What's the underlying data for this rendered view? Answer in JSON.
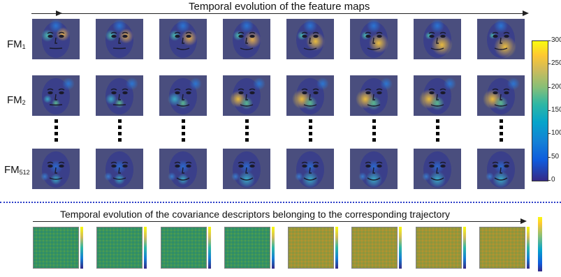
{
  "top_title": "Temporal evolution of the feature maps",
  "bottom_title": "Temporal evolution of the covariance descriptors belonging to the corresponding trajectory",
  "rows": [
    {
      "name": "FM",
      "sub": "1"
    },
    {
      "name": "FM",
      "sub": "2"
    },
    {
      "name": "FM",
      "sub": "512"
    }
  ],
  "colorbar": {
    "ticks": [
      "300",
      "250",
      "200",
      "150",
      "100",
      "50",
      "0"
    ],
    "range": [
      0,
      300
    ]
  },
  "frames": 8,
  "colors": {
    "separator": "#2a3cc8",
    "face_base": "#3a3f8a"
  }
}
